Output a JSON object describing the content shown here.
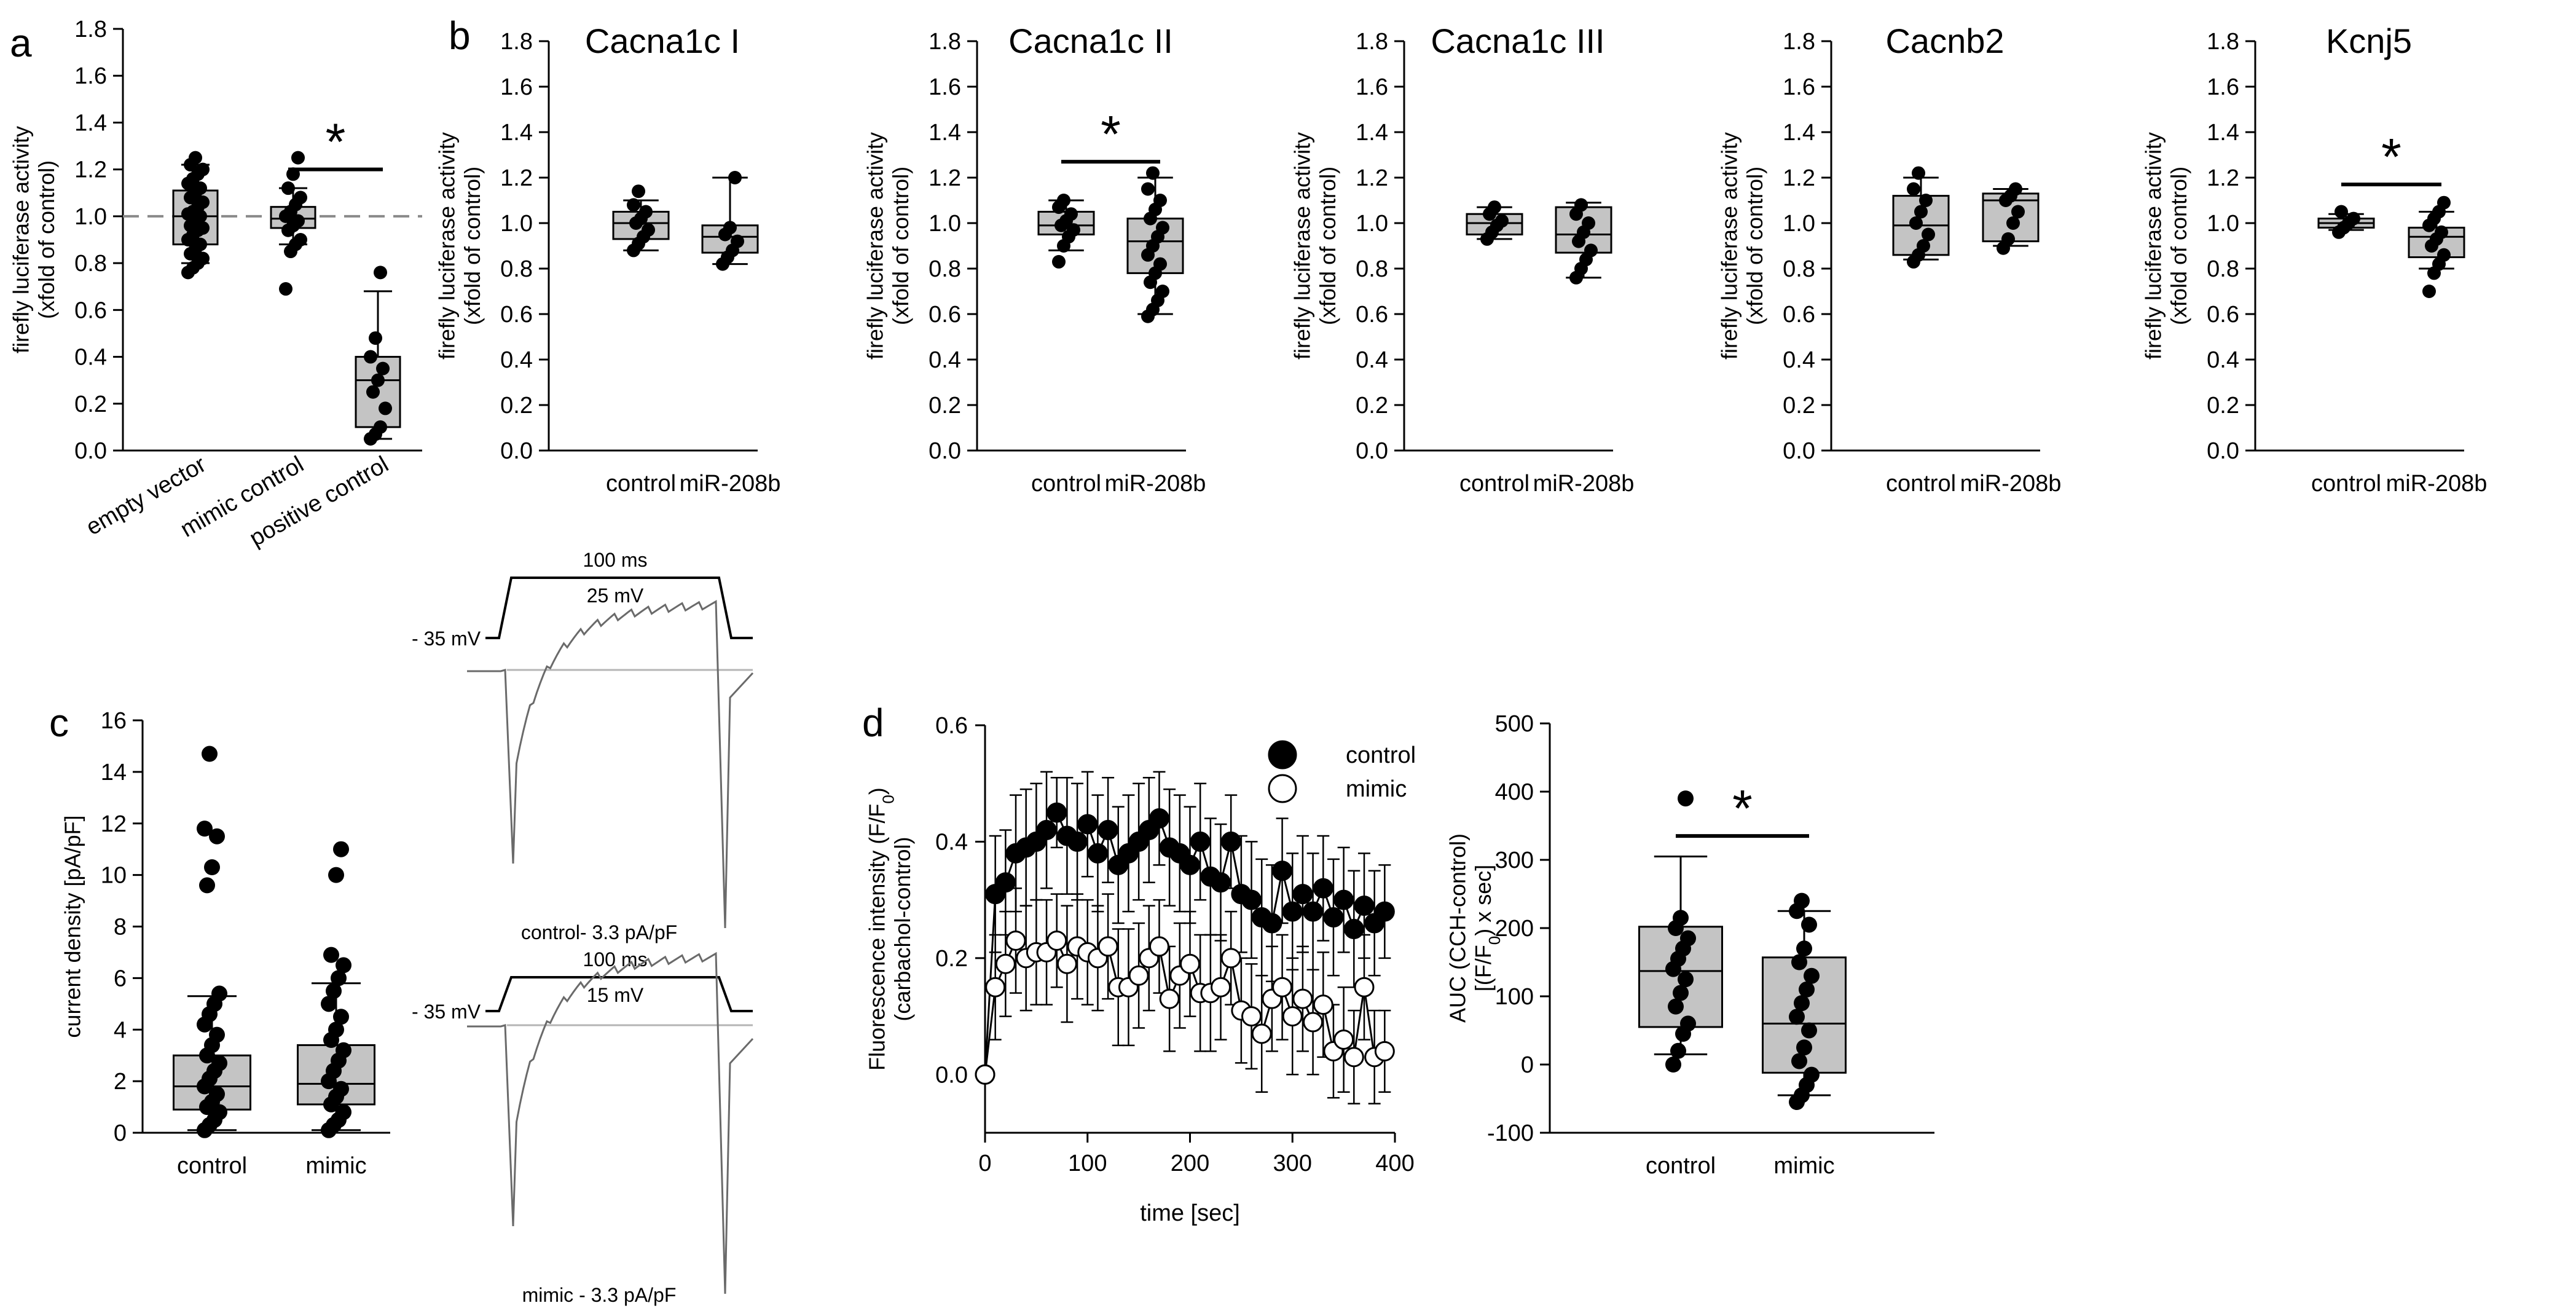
{
  "chart_data": [
    {
      "id": "a",
      "panel": "a",
      "type": "box",
      "title": "",
      "ylabel": [
        "firefly luciferase activity",
        "(xfold of control)"
      ],
      "ylim": [
        0,
        1.8
      ],
      "yticks": [
        0,
        0.2,
        0.4,
        0.6,
        0.8,
        1.0,
        1.2,
        1.4,
        1.6,
        1.8
      ],
      "ytick_labels": [
        "0.0",
        "0.2",
        "0.4",
        "0.6",
        "0.8",
        "1.0",
        "1.2",
        "1.4",
        "1.6",
        "1.8"
      ],
      "reference_line": 1.0,
      "categories_rotated": true,
      "categories": [
        "empty vector",
        "mimic control",
        "positive control"
      ],
      "boxes": [
        {
          "q1": 0.88,
          "median": 1.0,
          "q3": 1.11,
          "whisker_low": 0.8,
          "whisker_high": 1.22,
          "points": [
            0.76,
            0.78,
            0.8,
            0.82,
            0.84,
            0.86,
            0.88,
            0.9,
            0.92,
            0.94,
            0.95,
            0.96,
            0.98,
            1.0,
            1.01,
            1.02,
            1.04,
            1.06,
            1.08,
            1.1,
            1.12,
            1.14,
            1.16,
            1.18,
            1.2,
            1.22,
            1.25
          ]
        },
        {
          "q1": 0.95,
          "median": 0.99,
          "q3": 1.04,
          "whisker_low": 0.88,
          "whisker_high": 1.12,
          "points": [
            0.69,
            0.85,
            0.88,
            0.9,
            0.94,
            0.96,
            0.98,
            1.0,
            1.02,
            1.05,
            1.08,
            1.12,
            1.18,
            1.25
          ]
        },
        {
          "q1": 0.1,
          "median": 0.3,
          "q3": 0.4,
          "whisker_low": 0.05,
          "whisker_high": 0.68,
          "points": [
            0.05,
            0.07,
            0.1,
            0.18,
            0.25,
            0.3,
            0.35,
            0.4,
            0.48,
            0.76
          ]
        }
      ],
      "significance": [
        {
          "from": 1,
          "to": 2,
          "y": 1.2,
          "label": "*"
        }
      ]
    },
    {
      "id": "b1",
      "panel": "b",
      "type": "box",
      "title": "Cacna1c I",
      "ylabel": [
        "firefly luciferase activity",
        "(xfold of control)"
      ],
      "ylim": [
        0,
        1.8
      ],
      "yticks": [
        0,
        0.2,
        0.4,
        0.6,
        0.8,
        1.0,
        1.2,
        1.4,
        1.6,
        1.8
      ],
      "ytick_labels": [
        "0.0",
        "0.2",
        "0.4",
        "0.6",
        "0.8",
        "1.0",
        "1.2",
        "1.4",
        "1.6",
        "1.8"
      ],
      "categories": [
        "control",
        "miR-208b"
      ],
      "boxes": [
        {
          "q1": 0.93,
          "median": 1.0,
          "q3": 1.05,
          "whisker_low": 0.88,
          "whisker_high": 1.1,
          "points": [
            0.88,
            0.91,
            0.94,
            0.97,
            1.0,
            1.02,
            1.05,
            1.08,
            1.14
          ]
        },
        {
          "q1": 0.87,
          "median": 0.94,
          "q3": 0.99,
          "whisker_low": 0.82,
          "whisker_high": 1.2,
          "points": [
            0.82,
            0.85,
            0.88,
            0.92,
            0.95,
            0.98,
            1.2
          ]
        }
      ],
      "significance": []
    },
    {
      "id": "b2",
      "panel": "",
      "type": "box",
      "title": "Cacna1c II",
      "ylabel": [
        "firefly luciferase activity",
        "(xfold of control)"
      ],
      "ylim": [
        0,
        1.8
      ],
      "yticks": [
        0,
        0.2,
        0.4,
        0.6,
        0.8,
        1.0,
        1.2,
        1.4,
        1.6,
        1.8
      ],
      "ytick_labels": [
        "0.0",
        "0.2",
        "0.4",
        "0.6",
        "0.8",
        "1.0",
        "1.2",
        "1.4",
        "1.6",
        "1.8"
      ],
      "categories": [
        "control",
        "miR-208b"
      ],
      "boxes": [
        {
          "q1": 0.95,
          "median": 0.99,
          "q3": 1.05,
          "whisker_low": 0.88,
          "whisker_high": 1.1,
          "points": [
            0.83,
            0.9,
            0.94,
            0.97,
            0.99,
            1.01,
            1.04,
            1.07,
            1.1
          ]
        },
        {
          "q1": 0.78,
          "median": 0.92,
          "q3": 1.02,
          "whisker_low": 0.6,
          "whisker_high": 1.2,
          "points": [
            0.59,
            0.62,
            0.66,
            0.7,
            0.74,
            0.78,
            0.82,
            0.86,
            0.9,
            0.94,
            0.98,
            1.02,
            1.06,
            1.1,
            1.15,
            1.22
          ]
        }
      ],
      "significance": [
        {
          "from": 0,
          "to": 1,
          "y": 1.27,
          "label": "*"
        }
      ]
    },
    {
      "id": "b3",
      "panel": "",
      "type": "box",
      "title": "Cacna1c III",
      "ylabel": [
        "firefly luciferase activity",
        "(xfold of control)"
      ],
      "ylim": [
        0,
        1.8
      ],
      "yticks": [
        0,
        0.2,
        0.4,
        0.6,
        0.8,
        1.0,
        1.2,
        1.4,
        1.6,
        1.8
      ],
      "ytick_labels": [
        "0.0",
        "0.2",
        "0.4",
        "0.6",
        "0.8",
        "1.0",
        "1.2",
        "1.4",
        "1.6",
        "1.8"
      ],
      "categories": [
        "control",
        "miR-208b"
      ],
      "boxes": [
        {
          "q1": 0.95,
          "median": 1.0,
          "q3": 1.04,
          "whisker_low": 0.93,
          "whisker_high": 1.07,
          "points": [
            0.93,
            0.96,
            0.99,
            1.01,
            1.04,
            1.07
          ]
        },
        {
          "q1": 0.87,
          "median": 0.95,
          "q3": 1.07,
          "whisker_low": 0.76,
          "whisker_high": 1.09,
          "points": [
            0.76,
            0.8,
            0.84,
            0.88,
            0.92,
            0.96,
            1.0,
            1.04,
            1.08
          ]
        }
      ],
      "significance": []
    },
    {
      "id": "b4",
      "panel": "",
      "type": "box",
      "title": "Cacnb2",
      "ylabel": [
        "firefly luciferase activity",
        "(xfold of control)"
      ],
      "ylim": [
        0,
        1.8
      ],
      "yticks": [
        0,
        0.2,
        0.4,
        0.6,
        0.8,
        1.0,
        1.2,
        1.4,
        1.6,
        1.8
      ],
      "ytick_labels": [
        "0.0",
        "0.2",
        "0.4",
        "0.6",
        "0.8",
        "1.0",
        "1.2",
        "1.4",
        "1.6",
        "1.8"
      ],
      "categories": [
        "control",
        "miR-208b"
      ],
      "boxes": [
        {
          "q1": 0.86,
          "median": 0.99,
          "q3": 1.12,
          "whisker_low": 0.84,
          "whisker_high": 1.2,
          "points": [
            0.83,
            0.86,
            0.9,
            0.95,
            1.0,
            1.05,
            1.1,
            1.15,
            1.22
          ]
        },
        {
          "q1": 0.92,
          "median": 1.1,
          "q3": 1.13,
          "whisker_low": 0.9,
          "whisker_high": 1.15,
          "points": [
            0.89,
            0.93,
            1.0,
            1.05,
            1.1,
            1.12,
            1.15
          ]
        }
      ],
      "significance": []
    },
    {
      "id": "b5",
      "panel": "",
      "type": "box",
      "title": "Kcnj5",
      "ylabel": [
        "firefly luciferase activity",
        "(xfold of control)"
      ],
      "ylim": [
        0,
        1.8
      ],
      "yticks": [
        0,
        0.2,
        0.4,
        0.6,
        0.8,
        1.0,
        1.2,
        1.4,
        1.6,
        1.8
      ],
      "ytick_labels": [
        "0.0",
        "0.2",
        "0.4",
        "0.6",
        "0.8",
        "1.0",
        "1.2",
        "1.4",
        "1.6",
        "1.8"
      ],
      "categories": [
        "control",
        "miR-208b"
      ],
      "boxes": [
        {
          "q1": 0.98,
          "median": 1.0,
          "q3": 1.02,
          "whisker_low": 0.97,
          "whisker_high": 1.04,
          "points": [
            0.96,
            0.98,
            1.0,
            1.02,
            1.05
          ]
        },
        {
          "q1": 0.85,
          "median": 0.94,
          "q3": 0.98,
          "whisker_low": 0.8,
          "whisker_high": 1.05,
          "points": [
            0.7,
            0.78,
            0.82,
            0.86,
            0.9,
            0.93,
            0.96,
            0.99,
            1.02,
            1.05,
            1.09
          ]
        }
      ],
      "significance": [
        {
          "from": 0,
          "to": 1,
          "y": 1.17,
          "label": "*"
        }
      ]
    },
    {
      "id": "c",
      "panel": "c",
      "type": "box",
      "title": "",
      "ylabel": [
        "current density [pA/pF]"
      ],
      "ylim": [
        0,
        16
      ],
      "yticks": [
        0,
        2,
        4,
        6,
        8,
        10,
        12,
        14,
        16
      ],
      "ytick_labels": [
        "0",
        "2",
        "4",
        "6",
        "8",
        "10",
        "12",
        "14",
        "16"
      ],
      "categories": [
        "control",
        "mimic"
      ],
      "boxes": [
        {
          "q1": 0.9,
          "median": 1.8,
          "q3": 3.0,
          "whisker_low": 0.1,
          "whisker_high": 5.3,
          "points": [
            0.1,
            0.3,
            0.5,
            0.8,
            1.0,
            1.2,
            1.5,
            1.8,
            2.1,
            2.4,
            2.7,
            3.0,
            3.4,
            3.8,
            4.2,
            4.6,
            5.0,
            5.4,
            9.6,
            10.3,
            11.5,
            11.8,
            14.7
          ]
        },
        {
          "q1": 1.1,
          "median": 1.9,
          "q3": 3.4,
          "whisker_low": 0.1,
          "whisker_high": 5.8,
          "points": [
            0.1,
            0.3,
            0.5,
            0.8,
            1.1,
            1.4,
            1.7,
            2.0,
            2.4,
            2.8,
            3.2,
            3.6,
            4.0,
            4.5,
            5.0,
            5.5,
            6.0,
            6.5,
            6.9,
            10.0,
            11.0
          ]
        }
      ],
      "significance": []
    },
    {
      "id": "d_time",
      "panel": "d",
      "type": "line",
      "xlabel": "time [sec]",
      "ylabel": [
        "Fluorescence intensity (F/F0)",
        "(carbachol-control)"
      ],
      "xlim": [
        0,
        400
      ],
      "xticks": [
        0,
        100,
        200,
        300,
        400
      ],
      "xtick_labels": [
        "0",
        "100",
        "200",
        "300",
        "400"
      ],
      "ylim": [
        -0.1,
        0.6
      ],
      "yticks": [
        0,
        0.2,
        0.4,
        0.6
      ],
      "ytick_labels": [
        "0.0",
        "0.2",
        "0.4",
        "0.6"
      ],
      "x": [
        0,
        10,
        20,
        30,
        40,
        50,
        60,
        70,
        80,
        90,
        100,
        110,
        120,
        130,
        140,
        150,
        160,
        170,
        180,
        190,
        200,
        210,
        220,
        230,
        240,
        250,
        260,
        270,
        280,
        290,
        300,
        310,
        320,
        330,
        340,
        350,
        360,
        370,
        380,
        390
      ],
      "series": [
        {
          "name": "control",
          "marker": "filled",
          "values": [
            0.0,
            0.31,
            0.33,
            0.38,
            0.39,
            0.4,
            0.42,
            0.45,
            0.41,
            0.4,
            0.43,
            0.38,
            0.42,
            0.36,
            0.38,
            0.4,
            0.42,
            0.44,
            0.39,
            0.38,
            0.36,
            0.4,
            0.34,
            0.33,
            0.4,
            0.31,
            0.3,
            0.27,
            0.26,
            0.35,
            0.28,
            0.31,
            0.28,
            0.32,
            0.27,
            0.3,
            0.25,
            0.29,
            0.26,
            0.28
          ],
          "errors": [
            0.0,
            0.1,
            0.09,
            0.1,
            0.1,
            0.1,
            0.1,
            0.06,
            0.1,
            0.1,
            0.09,
            0.1,
            0.09,
            0.1,
            0.1,
            0.1,
            0.09,
            0.08,
            0.1,
            0.1,
            0.1,
            0.1,
            0.1,
            0.1,
            0.08,
            0.1,
            0.1,
            0.1,
            0.1,
            0.09,
            0.1,
            0.1,
            0.1,
            0.09,
            0.1,
            0.09,
            0.1,
            0.09,
            0.09,
            0.08
          ]
        },
        {
          "name": "mimic",
          "marker": "open",
          "values": [
            0.0,
            0.15,
            0.19,
            0.23,
            0.2,
            0.21,
            0.21,
            0.23,
            0.19,
            0.22,
            0.21,
            0.2,
            0.22,
            0.15,
            0.15,
            0.17,
            0.2,
            0.22,
            0.13,
            0.17,
            0.19,
            0.14,
            0.14,
            0.15,
            0.2,
            0.11,
            0.1,
            0.07,
            0.13,
            0.15,
            0.1,
            0.13,
            0.09,
            0.12,
            0.04,
            0.06,
            0.03,
            0.15,
            0.03,
            0.04
          ],
          "errors": [
            0.0,
            0.09,
            0.09,
            0.09,
            0.09,
            0.09,
            0.09,
            0.08,
            0.1,
            0.09,
            0.09,
            0.09,
            0.09,
            0.1,
            0.1,
            0.09,
            0.09,
            0.08,
            0.09,
            0.09,
            0.09,
            0.1,
            0.1,
            0.09,
            0.08,
            0.09,
            0.09,
            0.1,
            0.09,
            0.09,
            0.1,
            0.09,
            0.09,
            0.09,
            0.08,
            0.09,
            0.08,
            0.09,
            0.08,
            0.07
          ]
        }
      ],
      "legend": [
        "control",
        "mimic"
      ]
    },
    {
      "id": "d_auc",
      "panel": "",
      "type": "box",
      "title": "",
      "ylabel": [
        "AUC (CCH-control)",
        "[(F/F0) x sec]"
      ],
      "ylim": [
        -100,
        500
      ],
      "yticks": [
        -100,
        0,
        100,
        200,
        300,
        400,
        500
      ],
      "ytick_labels": [
        "-100",
        "0",
        "100",
        "200",
        "300",
        "400",
        "500"
      ],
      "categories": [
        "control",
        "mimic"
      ],
      "boxes": [
        {
          "q1": 55,
          "median": 137,
          "q3": 202,
          "whisker_low": 15,
          "whisker_high": 305,
          "points": [
            0,
            20,
            45,
            60,
            85,
            105,
            125,
            140,
            155,
            170,
            185,
            200,
            215,
            390
          ]
        },
        {
          "q1": -12,
          "median": 60,
          "q3": 157,
          "whisker_low": -45,
          "whisker_high": 225,
          "points": [
            -55,
            -45,
            -30,
            -15,
            5,
            25,
            50,
            70,
            90,
            110,
            130,
            150,
            170,
            205,
            225,
            240
          ]
        }
      ],
      "significance": [
        {
          "from": 0,
          "to": 1,
          "y": 335,
          "label": "*"
        }
      ]
    }
  ],
  "traces": [
    {
      "id": "control-trace",
      "holding": "- 35 mV",
      "duration": "100 ms",
      "step": "25 mV",
      "caption": "control- 3.3 pA/pF"
    },
    {
      "id": "mimic-trace",
      "holding": "- 35 mV",
      "duration": "100 ms",
      "step": "15 mV",
      "caption": "mimic - 3.3 pA/pF"
    }
  ]
}
